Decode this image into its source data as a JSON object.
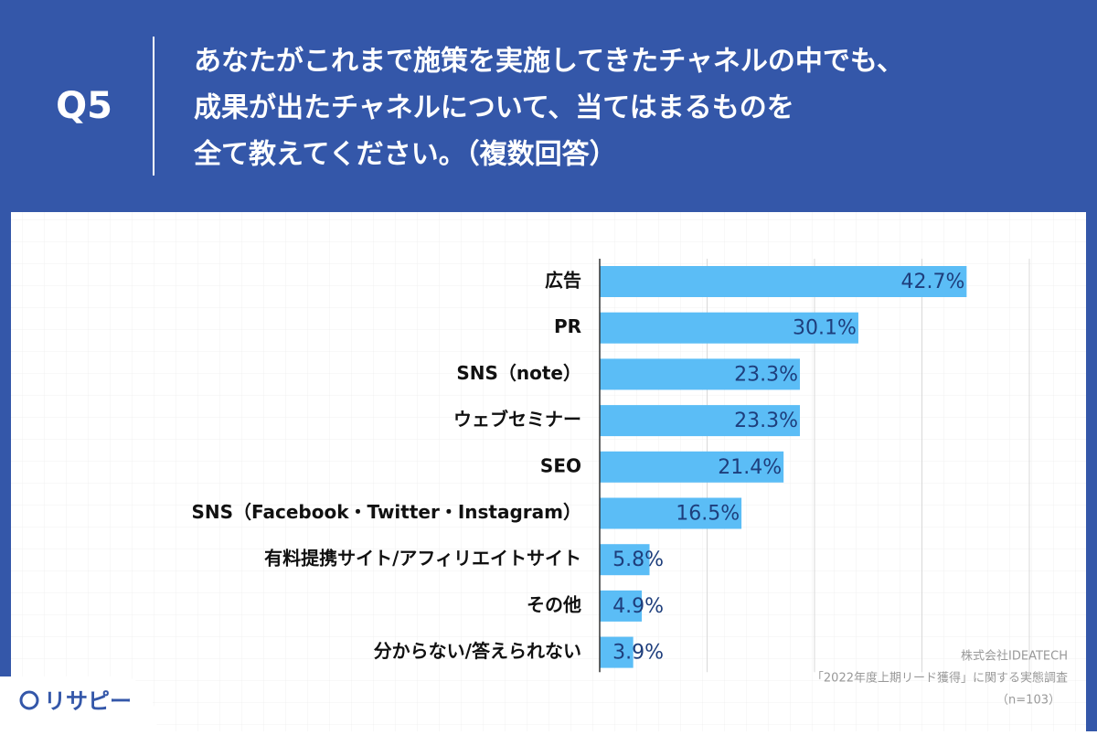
{
  "header": {
    "label": "Q5",
    "question": [
      "あなたがこれまで施策を実施してきたチャネルの中でも、",
      "成果が出たチャネルについて、当てはまるものを",
      "全て教えてください。（複数回答）"
    ]
  },
  "chart_data": {
    "type": "bar",
    "orientation": "horizontal",
    "categories": [
      "広告",
      "PR",
      "SNS（note）",
      "ウェブセミナー",
      "SEO",
      "SNS（Facebook・Twitter・Instagram）",
      "有料提携サイト/アフィリエイトサイト",
      "その他",
      "分からない/答えられない"
    ],
    "values": [
      42.7,
      30.1,
      23.3,
      23.3,
      21.4,
      16.5,
      5.8,
      4.9,
      3.9
    ],
    "value_labels": [
      "42.7%",
      "30.1%",
      "23.3%",
      "23.3%",
      "21.4%",
      "16.5%",
      "5.8%",
      "4.9%",
      "3.9%"
    ],
    "color": "#5bbdf6",
    "xlim": [
      0,
      50
    ],
    "xticks": [
      0,
      12.5,
      25,
      37.5,
      50
    ],
    "grid": true
  },
  "footer": {
    "source": [
      "株式会社IDEATECH",
      "「2022年度上期リード獲得」に関する実態調査",
      "（n=103）"
    ],
    "logo": "リサピー"
  }
}
